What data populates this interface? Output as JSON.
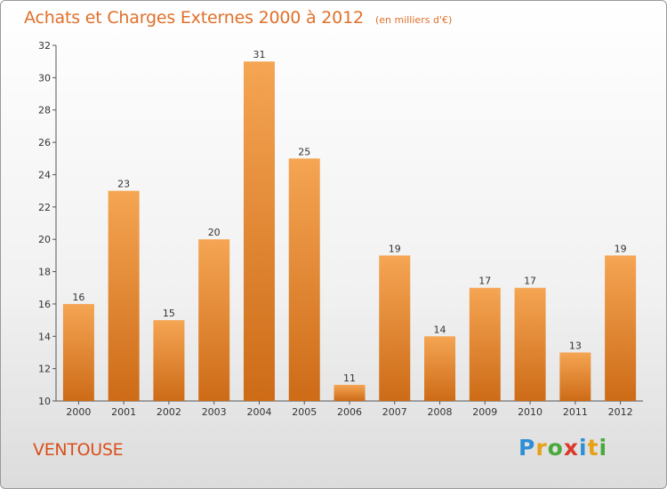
{
  "header": {
    "title": "Achats et Charges Externes 2000 à 2012",
    "subtitle": "(en milliers d'€)"
  },
  "commune": "VENTOUSE",
  "logo": {
    "letters": [
      "P",
      "r",
      "o",
      "x",
      "i",
      "t",
      "i"
    ],
    "colors": [
      "#2f8fd6",
      "#e8a015",
      "#4aa93c",
      "#d93a2a",
      "#2f8fd6",
      "#e8a015",
      "#4aa93c"
    ]
  },
  "colors": {
    "bar_top": "#f5a553",
    "bar_bottom": "#cd6b17",
    "text": "#333333"
  },
  "chart_data": {
    "type": "bar",
    "categories": [
      "2000",
      "2001",
      "2002",
      "2003",
      "2004",
      "2005",
      "2006",
      "2007",
      "2008",
      "2009",
      "2010",
      "2011",
      "2012"
    ],
    "values": [
      16,
      23,
      15,
      20,
      31,
      25,
      11,
      19,
      14,
      17,
      17,
      13,
      19
    ],
    "title": "Achats et Charges Externes 2000 à 2012",
    "xlabel": "",
    "ylabel": "",
    "ylim": [
      10,
      32
    ],
    "yticks": [
      10,
      12,
      14,
      16,
      18,
      20,
      22,
      24,
      26,
      28,
      30,
      32
    ],
    "grid": false,
    "data_labels": true
  }
}
